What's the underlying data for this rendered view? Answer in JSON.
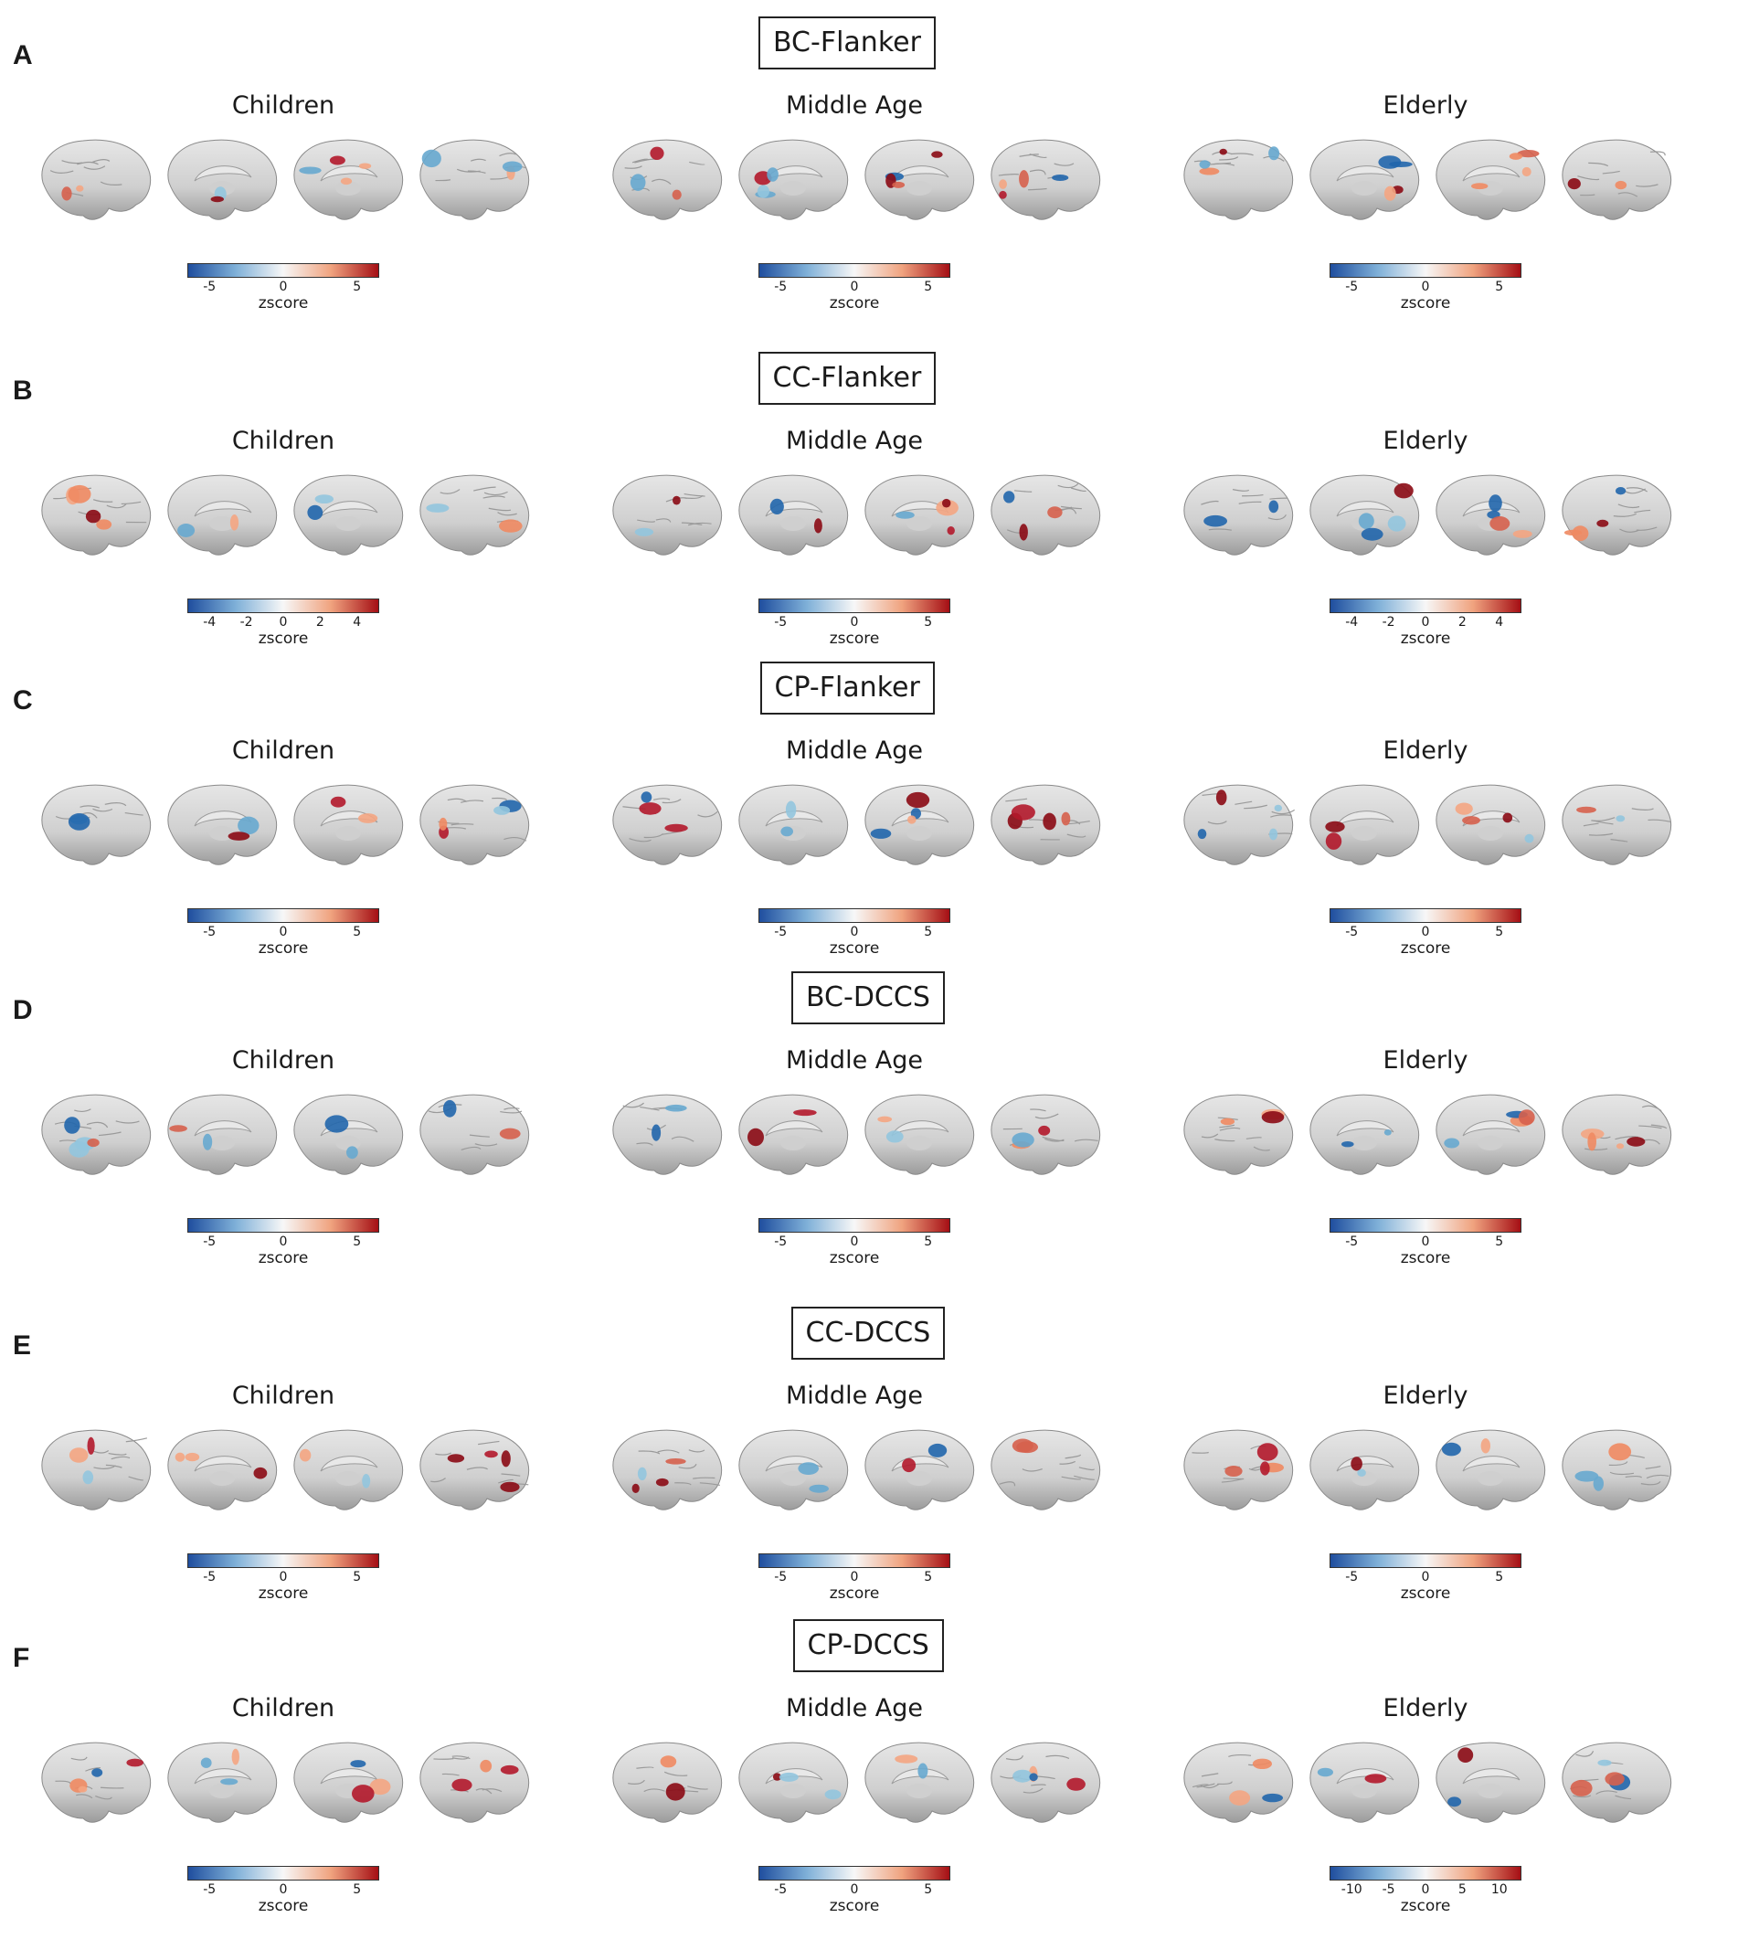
{
  "figure": {
    "colorbar_colors": [
      "#1f4e9e",
      "#7fb0d8",
      "#f7f7f7",
      "#f0a37f",
      "#a50f15"
    ],
    "brain_base_color": "#d4d4d4",
    "panels": [
      {
        "letter": "A",
        "title": "BC-Flanker",
        "groups": [
          {
            "label": "Children",
            "colorbar": {
              "ticks": [
                "-5",
                "0",
                "5"
              ],
              "label": "zscore"
            }
          },
          {
            "label": "Middle Age",
            "colorbar": {
              "ticks": [
                "-5",
                "0",
                "5"
              ],
              "label": "zscore"
            }
          },
          {
            "label": "Elderly",
            "colorbar": {
              "ticks": [
                "-5",
                "0",
                "5"
              ],
              "label": "zscore"
            }
          }
        ]
      },
      {
        "letter": "B",
        "title": "CC-Flanker",
        "groups": [
          {
            "label": "Children",
            "colorbar": {
              "ticks": [
                "-4",
                "-2",
                "0",
                "2",
                "4"
              ],
              "label": "zscore"
            }
          },
          {
            "label": "Middle Age",
            "colorbar": {
              "ticks": [
                "-5",
                "0",
                "5"
              ],
              "label": "zscore"
            }
          },
          {
            "label": "Elderly",
            "colorbar": {
              "ticks": [
                "-4",
                "-2",
                "0",
                "2",
                "4"
              ],
              "label": "zscore"
            }
          }
        ]
      },
      {
        "letter": "C",
        "title": "CP-Flanker",
        "groups": [
          {
            "label": "Children",
            "colorbar": {
              "ticks": [
                "-5",
                "0",
                "5"
              ],
              "label": "zscore"
            }
          },
          {
            "label": "Middle Age",
            "colorbar": {
              "ticks": [
                "-5",
                "0",
                "5"
              ],
              "label": "zscore"
            }
          },
          {
            "label": "Elderly",
            "colorbar": {
              "ticks": [
                "-5",
                "0",
                "5"
              ],
              "label": "zscore"
            }
          }
        ]
      },
      {
        "letter": "D",
        "title": "BC-DCCS",
        "groups": [
          {
            "label": "Children",
            "colorbar": {
              "ticks": [
                "-5",
                "0",
                "5"
              ],
              "label": "zscore"
            }
          },
          {
            "label": "Middle Age",
            "colorbar": {
              "ticks": [
                "-5",
                "0",
                "5"
              ],
              "label": "zscore"
            }
          },
          {
            "label": "Elderly",
            "colorbar": {
              "ticks": [
                "-5",
                "0",
                "5"
              ],
              "label": "zscore"
            }
          }
        ]
      },
      {
        "letter": "E",
        "title": "CC-DCCS",
        "groups": [
          {
            "label": "Children",
            "colorbar": {
              "ticks": [
                "-5",
                "0",
                "5"
              ],
              "label": "zscore"
            }
          },
          {
            "label": "Middle Age",
            "colorbar": {
              "ticks": [
                "-5",
                "0",
                "5"
              ],
              "label": "zscore"
            }
          },
          {
            "label": "Elderly",
            "colorbar": {
              "ticks": [
                "-5",
                "0",
                "5"
              ],
              "label": "zscore"
            }
          }
        ]
      },
      {
        "letter": "F",
        "title": "CP-DCCS",
        "groups": [
          {
            "label": "Children",
            "colorbar": {
              "ticks": [
                "-5",
                "0",
                "5"
              ],
              "label": "zscore"
            }
          },
          {
            "label": "Middle Age",
            "colorbar": {
              "ticks": [
                "-5",
                "0",
                "5"
              ],
              "label": "zscore"
            }
          },
          {
            "label": "Elderly",
            "colorbar": {
              "ticks": [
                "-10",
                "-5",
                "0",
                "5",
                "10"
              ],
              "label": "zscore"
            }
          }
        ]
      }
    ]
  }
}
